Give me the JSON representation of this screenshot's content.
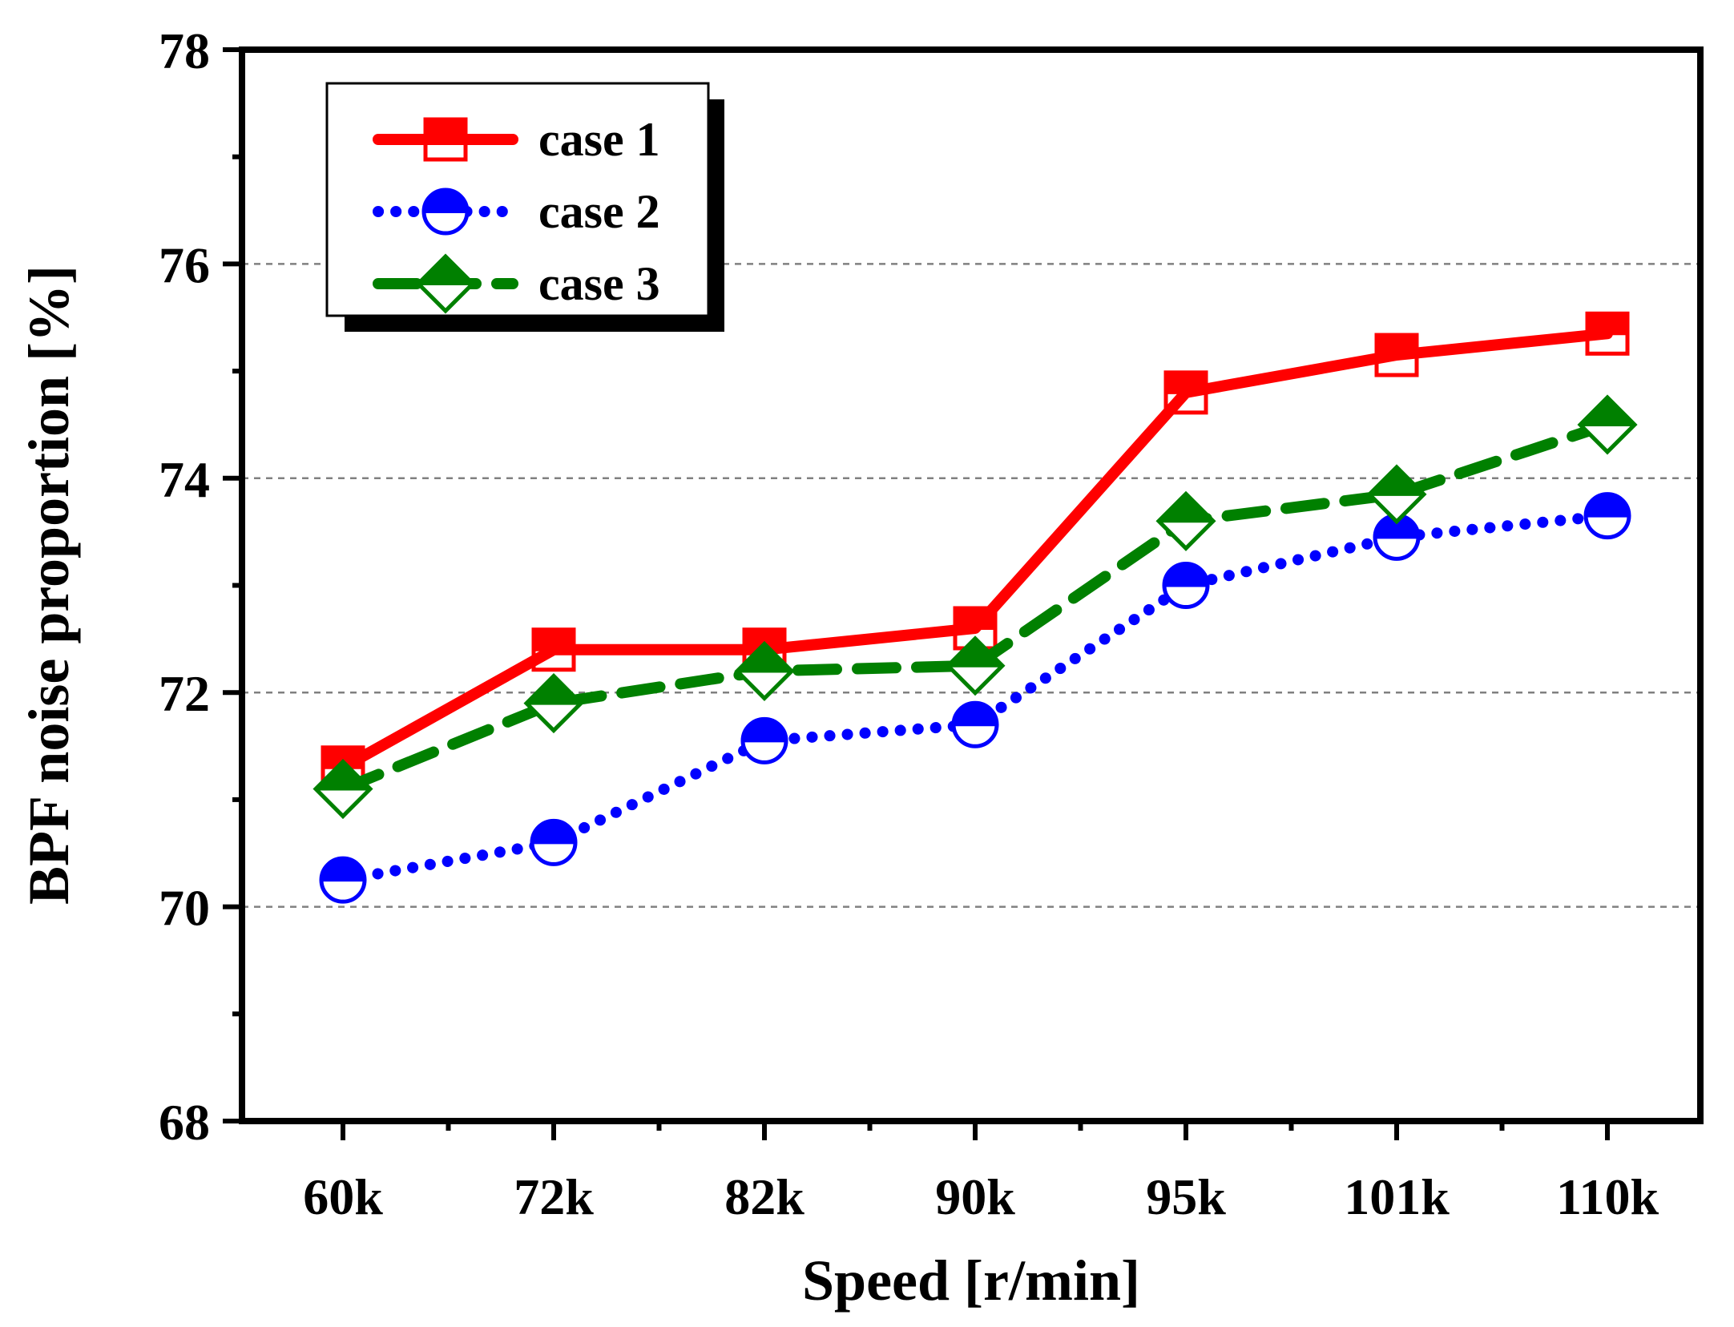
{
  "chart_data": {
    "type": "line",
    "title": "",
    "xlabel": "Speed [r/min]",
    "ylabel": "BPF noise proportion [%]",
    "categories": [
      "60k",
      "72k",
      "82k",
      "90k",
      "95k",
      "101k",
      "110k"
    ],
    "ylim": [
      68,
      78
    ],
    "yticks": [
      "68",
      "70",
      "72",
      "74",
      "76",
      "78"
    ],
    "grid": "horizontal dashed at 70, 72, 74, 76",
    "legend_position": "top-left",
    "series": [
      {
        "name": "case 1",
        "color": "#ff0000",
        "line_style": "solid",
        "marker": "half-filled square",
        "values": [
          71.3,
          72.4,
          72.4,
          72.6,
          74.8,
          75.15,
          75.35
        ]
      },
      {
        "name": "case 2",
        "color": "#0000ff",
        "line_style": "dotted",
        "marker": "half-filled circle",
        "values": [
          70.25,
          70.6,
          71.55,
          71.7,
          73.0,
          73.45,
          73.65
        ]
      },
      {
        "name": "case 3",
        "color": "#008000",
        "line_style": "dashed",
        "marker": "half-filled diamond",
        "values": [
          71.1,
          71.9,
          72.2,
          72.25,
          73.6,
          73.85,
          74.5
        ]
      }
    ]
  }
}
